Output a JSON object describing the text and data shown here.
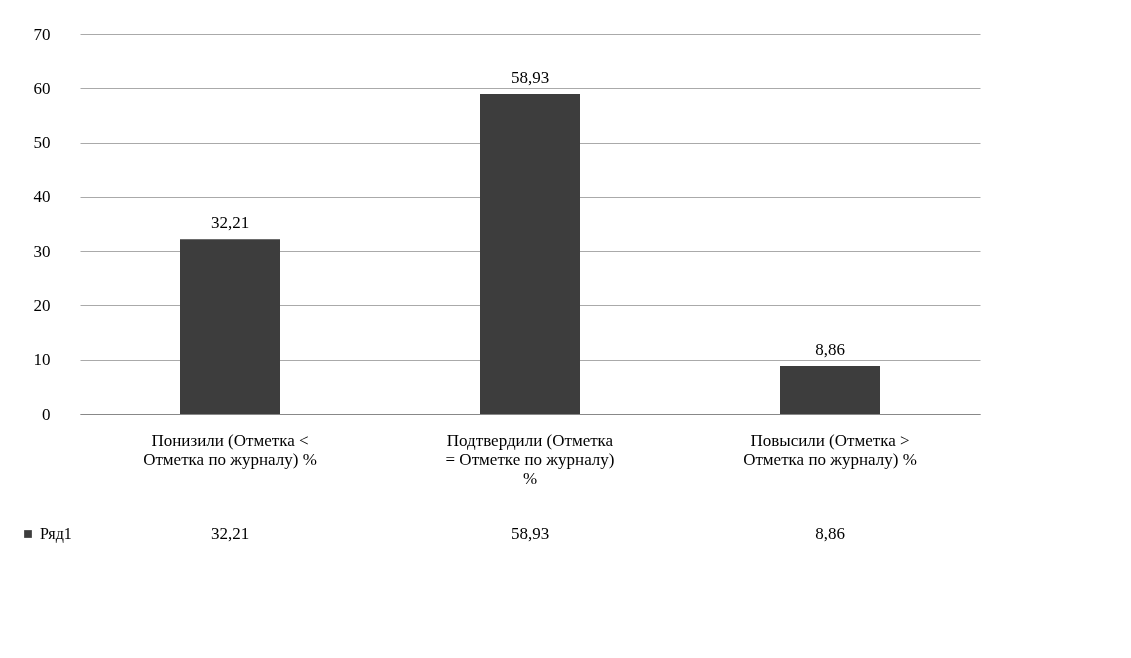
{
  "chart_data": {
    "type": "bar",
    "categories": [
      "Понизили (Отметка <\nОтметка по журналу) %",
      "Подтвердили (Отметка\n= Отметке по журналу)\n%",
      "Повысили (Отметка >\nОтметка по журналу) %"
    ],
    "series": [
      {
        "name": "Ряд1",
        "color": "#3d3d3d",
        "values": [
          32.21,
          58.93,
          8.86
        ],
        "value_labels": [
          "32,21",
          "58,93",
          "8,86"
        ]
      }
    ],
    "ylim": [
      0,
      70
    ],
    "yticks": [
      0,
      10,
      20,
      30,
      40,
      50,
      60,
      70
    ],
    "grid": "y",
    "legend": "bottom"
  }
}
